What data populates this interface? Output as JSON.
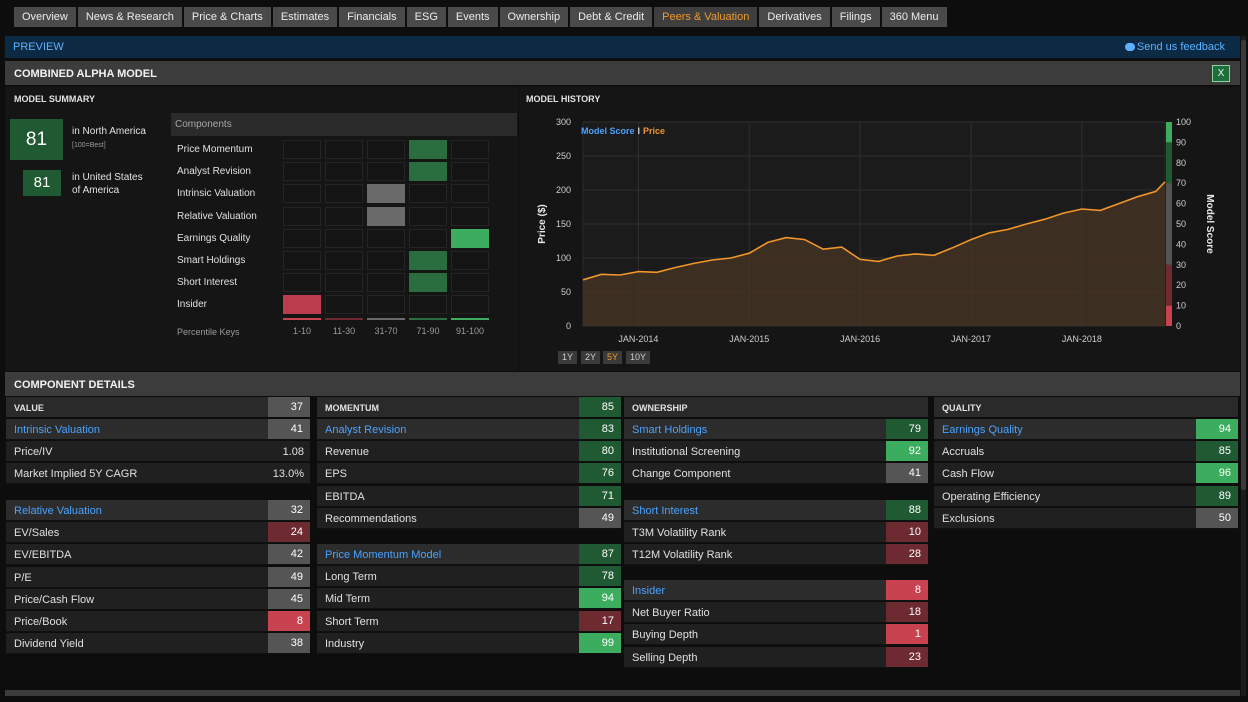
{
  "tabs": [
    {
      "label": "Overview"
    },
    {
      "label": "News & Research"
    },
    {
      "label": "Price & Charts"
    },
    {
      "label": "Estimates"
    },
    {
      "label": "Financials"
    },
    {
      "label": "ESG"
    },
    {
      "label": "Events"
    },
    {
      "label": "Ownership"
    },
    {
      "label": "Debt & Credit"
    },
    {
      "label": "Peers & Valuation",
      "active": true
    },
    {
      "label": "Derivatives"
    },
    {
      "label": "Filings"
    },
    {
      "label": "360 Menu"
    }
  ],
  "preview": {
    "label": "PREVIEW",
    "feedback": "Send us feedback"
  },
  "section_title": "COMBINED ALPHA MODEL",
  "summary": {
    "heading": "MODEL SUMMARY",
    "region_score": "81",
    "region_label": "in North America",
    "region_note": "[100=Best]",
    "country_score": "81",
    "country_label_1": "in United States",
    "country_label_2": "of America"
  },
  "components": {
    "header": "Components",
    "rows": [
      {
        "label": "Price Momentum",
        "bucket": 3,
        "tone": "g1"
      },
      {
        "label": "Analyst Revision",
        "bucket": 3,
        "tone": "g1"
      },
      {
        "label": "Intrinsic Valuation",
        "bucket": 2,
        "tone": "gr"
      },
      {
        "label": "Relative Valuation",
        "bucket": 2,
        "tone": "gr"
      },
      {
        "label": "Earnings Quality",
        "bucket": 4,
        "tone": "g2"
      },
      {
        "label": "Smart Holdings",
        "bucket": 3,
        "tone": "g1"
      },
      {
        "label": "Short Interest",
        "bucket": 3,
        "tone": "g1"
      },
      {
        "label": "Insider",
        "bucket": 0,
        "tone": "rd"
      }
    ],
    "keys_label": "Percentile Keys",
    "keys": [
      "1-10",
      "11-30",
      "31-70",
      "71-90",
      "91-100"
    ],
    "key_colors": [
      "#c8424f",
      "#6e2a31",
      "#6a6a6a",
      "#2a6e3f",
      "#3cad5e"
    ]
  },
  "history": {
    "heading": "MODEL HISTORY",
    "legend_score": "Model Score",
    "legend_sep": "I",
    "legend_price": "Price",
    "ranges": [
      "1Y",
      "2Y",
      "5Y",
      "10Y"
    ],
    "active_range": "5Y"
  },
  "chart_data": {
    "type": "line",
    "ylabel": "Price ($)",
    "y2label": "Model Score",
    "ylim": [
      0,
      300
    ],
    "y_ticks": [
      0,
      50,
      100,
      150,
      200,
      250,
      300
    ],
    "y2lim": [
      0,
      100
    ],
    "y2_ticks": [
      0,
      10,
      20,
      30,
      40,
      50,
      60,
      70,
      80,
      90,
      100
    ],
    "x_ticks": [
      "JAN-2014",
      "JAN-2015",
      "JAN-2016",
      "JAN-2017",
      "JAN-2018"
    ],
    "grid": true,
    "series": [
      {
        "name": "Price",
        "x": [
          "2013-07",
          "2013-09",
          "2013-11",
          "2014-01",
          "2014-03",
          "2014-05",
          "2014-07",
          "2014-09",
          "2014-11",
          "2015-01",
          "2015-03",
          "2015-05",
          "2015-07",
          "2015-09",
          "2015-11",
          "2016-01",
          "2016-03",
          "2016-05",
          "2016-07",
          "2016-09",
          "2016-11",
          "2017-01",
          "2017-03",
          "2017-05",
          "2017-07",
          "2017-09",
          "2017-11",
          "2018-01",
          "2018-03",
          "2018-05",
          "2018-07",
          "2018-09",
          "2018-10"
        ],
        "values": [
          68,
          76,
          75,
          80,
          79,
          86,
          92,
          97,
          100,
          107,
          123,
          130,
          127,
          113,
          116,
          98,
          95,
          103,
          106,
          104,
          115,
          127,
          137,
          142,
          150,
          157,
          166,
          172,
          170,
          180,
          190,
          198,
          212
        ]
      }
    ],
    "score_scale": [
      {
        "from": 90,
        "to": 100,
        "color": "#3cad5e"
      },
      {
        "from": 70,
        "to": 90,
        "color": "#1f5a33"
      },
      {
        "from": 30,
        "to": 70,
        "color": "#555555"
      },
      {
        "from": 10,
        "to": 30,
        "color": "#6e2a31"
      },
      {
        "from": 0,
        "to": 10,
        "color": "#c8424f"
      }
    ]
  },
  "details": {
    "title": "COMPONENT DETAILS",
    "value": {
      "header": "VALUE",
      "score": "37",
      "rows": [
        {
          "label": "Intrinsic Valuation",
          "value": "41",
          "tone": "b-gr",
          "sub": true
        },
        {
          "label": "Price/IV",
          "value": "1.08",
          "tone": "plain"
        },
        {
          "label": "Market Implied 5Y CAGR",
          "value": "13.0%",
          "tone": "plain"
        }
      ],
      "rows2": [
        {
          "label": "Relative Valuation",
          "value": "32",
          "tone": "b-gr",
          "sub": true
        },
        {
          "label": "EV/Sales",
          "value": "24",
          "tone": "b-rd"
        },
        {
          "label": "EV/EBITDA",
          "value": "42",
          "tone": "b-gr"
        },
        {
          "label": "P/E",
          "value": "49",
          "tone": "b-gr"
        },
        {
          "label": "Price/Cash Flow",
          "value": "45",
          "tone": "b-gr"
        },
        {
          "label": "Price/Book",
          "value": "8",
          "tone": "b-rb"
        },
        {
          "label": "Dividend Yield",
          "value": "38",
          "tone": "b-gr"
        }
      ]
    },
    "momentum": {
      "header": "MOMENTUM",
      "score": "85",
      "rows": [
        {
          "label": "Analyst Revision",
          "value": "83",
          "tone": "b-gd",
          "sub": true
        },
        {
          "label": "Revenue",
          "value": "80",
          "tone": "b-gd"
        },
        {
          "label": "EPS",
          "value": "76",
          "tone": "b-gd"
        },
        {
          "label": "EBITDA",
          "value": "71",
          "tone": "b-gd"
        },
        {
          "label": "Recommendations",
          "value": "49",
          "tone": "b-gr"
        }
      ],
      "rows2": [
        {
          "label": "Price Momentum Model",
          "value": "87",
          "tone": "b-gd",
          "sub": true
        },
        {
          "label": "Long Term",
          "value": "78",
          "tone": "b-gd"
        },
        {
          "label": "Mid Term",
          "value": "94",
          "tone": "b-gb"
        },
        {
          "label": "Short Term",
          "value": "17",
          "tone": "b-rd"
        },
        {
          "label": "Industry",
          "value": "99",
          "tone": "b-gb"
        }
      ]
    },
    "ownership": {
      "header": "OWNERSHIP",
      "rows": [
        {
          "label": "Smart Holdings",
          "value": "79",
          "tone": "b-gd",
          "sub": true
        },
        {
          "label": "Institutional Screening",
          "value": "92",
          "tone": "b-gb"
        },
        {
          "label": "Change Component",
          "value": "41",
          "tone": "b-gr"
        }
      ],
      "rows2": [
        {
          "label": "Short Interest",
          "value": "88",
          "tone": "b-gd",
          "sub": true
        },
        {
          "label": "T3M Volatility Rank",
          "value": "10",
          "tone": "b-rd"
        },
        {
          "label": "T12M Volatility Rank",
          "value": "28",
          "tone": "b-rd"
        }
      ],
      "rows3": [
        {
          "label": "Insider",
          "value": "8",
          "tone": "b-rb",
          "sub": true
        },
        {
          "label": "Net Buyer Ratio",
          "value": "18",
          "tone": "b-rd"
        },
        {
          "label": "Buying Depth",
          "value": "1",
          "tone": "b-rb"
        },
        {
          "label": "Selling Depth",
          "value": "23",
          "tone": "b-rd"
        }
      ]
    },
    "quality": {
      "header": "QUALITY",
      "rows": [
        {
          "label": "Earnings Quality",
          "value": "94",
          "tone": "b-gb",
          "sub": true
        },
        {
          "label": "Accruals",
          "value": "85",
          "tone": "b-gd"
        },
        {
          "label": "Cash Flow",
          "value": "96",
          "tone": "b-gb"
        },
        {
          "label": "Operating Efficiency",
          "value": "89",
          "tone": "b-gd"
        },
        {
          "label": "Exclusions",
          "value": "50",
          "tone": "b-gr"
        }
      ]
    }
  }
}
